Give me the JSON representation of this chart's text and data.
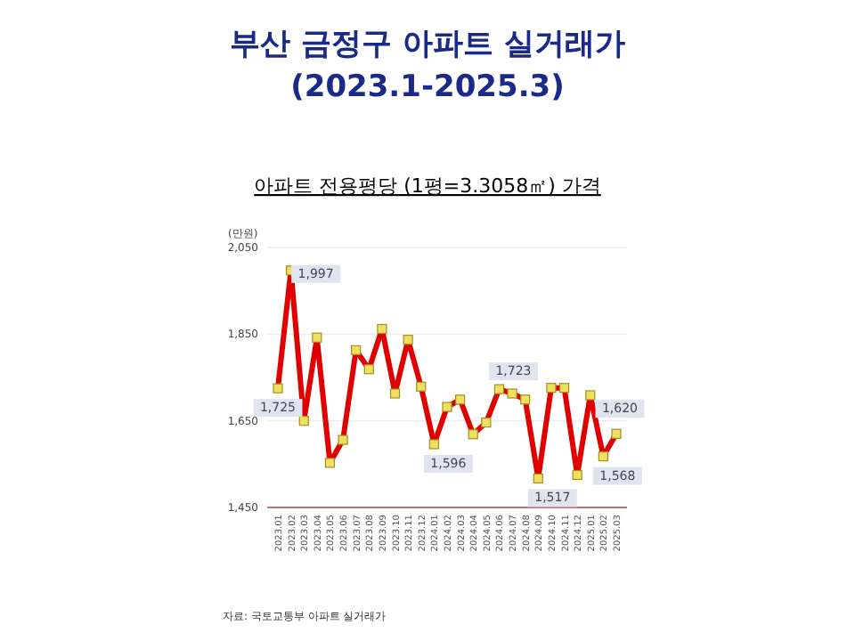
{
  "chart_data": {
    "type": "line",
    "title": "부산 금정구 아파트 실거래가\n(2023.1-2025.3)",
    "subtitle": "아파트 전용평당 (1평=3.3058㎡) 가격",
    "ylabel": "(만원)",
    "categories": [
      "2023.01",
      "2023.02",
      "2023.03",
      "2023.04",
      "2023.05",
      "2023.06",
      "2023.07",
      "2023.08",
      "2023.09",
      "2023.10",
      "2023.11",
      "2023.12",
      "2024.01",
      "2024.02",
      "2024.03",
      "2024.04",
      "2024.05",
      "2024.06",
      "2024.07",
      "2024.08",
      "2024.09",
      "2024.10",
      "2024.11",
      "2024.12",
      "2025.01",
      "2025.02",
      "2025.03"
    ],
    "series": [
      {
        "color": "#e00000",
        "values": [
          1725,
          1997,
          1650,
          1842,
          1553,
          1606,
          1813,
          1769,
          1862,
          1713,
          1837,
          1729,
          1596,
          1682,
          1699,
          1619,
          1646,
          1723,
          1713,
          1699,
          1517,
          1726,
          1726,
          1525,
          1709,
          1568,
          1620
        ],
        "value_labels": [
          "1,725",
          "1,997",
          null,
          null,
          null,
          null,
          null,
          null,
          null,
          null,
          null,
          null,
          "1,596",
          null,
          null,
          null,
          null,
          "1,723",
          null,
          null,
          "1,517",
          null,
          null,
          null,
          null,
          "1,568",
          "1,620"
        ]
      }
    ],
    "ylim": [
      1450,
      2050
    ],
    "yticks": [
      {
        "value": 1450,
        "label": "1,450"
      },
      {
        "value": 1650,
        "label": "1,650"
      },
      {
        "value": 1850,
        "label": "1,850"
      },
      {
        "value": 2050,
        "label": "2,050"
      }
    ],
    "grid": "y",
    "marker": "square",
    "line_style": "solid",
    "annotations": [
      "자료: 국토교통부 아파트 실거래가"
    ]
  }
}
